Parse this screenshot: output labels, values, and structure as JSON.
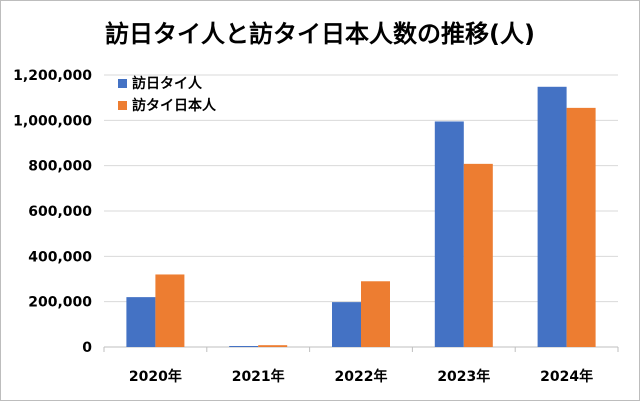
{
  "chart_data": {
    "type": "bar",
    "title": "訪日タイ人と訪タイ日本人数の推移(人)",
    "categories": [
      "2020年",
      "2021年",
      "2022年",
      "2023年",
      "2024年"
    ],
    "series": [
      {
        "name": "訪日タイ人",
        "color": "#4472C4",
        "values": [
          220000,
          3000,
          198000,
          995000,
          1148000
        ]
      },
      {
        "name": "訪タイ日本人",
        "color": "#ED7D31",
        "values": [
          320000,
          8000,
          290000,
          808000,
          1055000
        ]
      }
    ],
    "ylim": [
      0,
      1200000
    ],
    "yticks": [
      0,
      200000,
      400000,
      600000,
      800000,
      1000000,
      1200000
    ],
    "ytick_labels": [
      "0",
      "200,000",
      "400,000",
      "600,000",
      "800,000",
      "1,000,000",
      "1,200,000"
    ],
    "grid": true,
    "legend_position": "top-left"
  }
}
